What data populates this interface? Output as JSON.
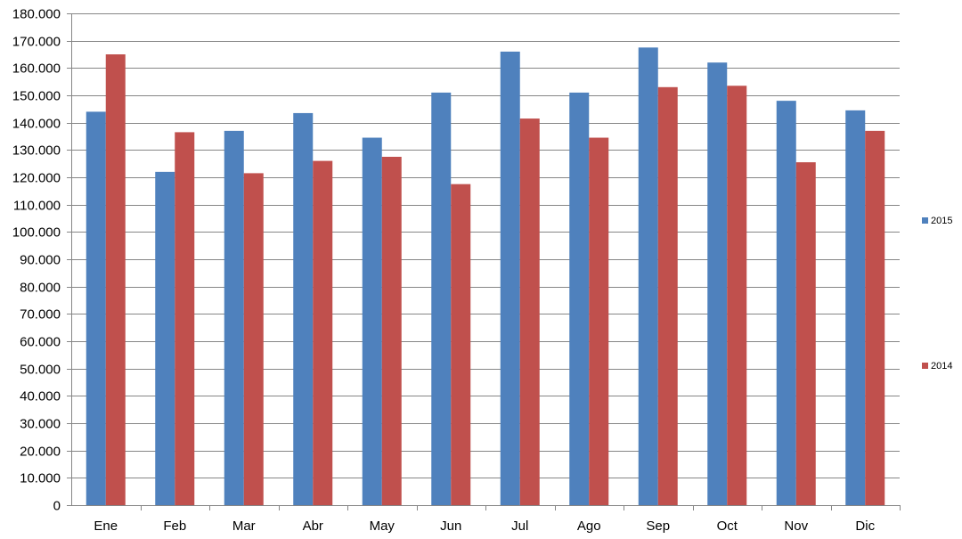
{
  "chart_data": {
    "type": "bar",
    "categories": [
      "Ene",
      "Feb",
      "Mar",
      "Abr",
      "May",
      "Jun",
      "Jul",
      "Ago",
      "Sep",
      "Oct",
      "Nov",
      "Dic"
    ],
    "series": [
      {
        "name": "2015",
        "color": "#4f81bd",
        "values": [
          144000,
          122000,
          137000,
          143500,
          134500,
          151000,
          166000,
          151000,
          167500,
          162000,
          148000,
          144500
        ]
      },
      {
        "name": "2014",
        "color": "#c0504d",
        "values": [
          165000,
          136500,
          121500,
          126000,
          127500,
          117500,
          141500,
          134500,
          153000,
          153500,
          125500,
          137000
        ]
      }
    ],
    "y_ticks": [
      "0",
      "10.000",
      "20.000",
      "30.000",
      "40.000",
      "50.000",
      "60.000",
      "70.000",
      "80.000",
      "90.000",
      "100.000",
      "110.000",
      "120.000",
      "130.000",
      "140.000",
      "150.000",
      "160.000",
      "170.000",
      "180.000"
    ],
    "ylim": [
      0,
      180000
    ],
    "grid": true,
    "legend_position": "right",
    "title": "",
    "xlabel": "",
    "ylabel": ""
  }
}
